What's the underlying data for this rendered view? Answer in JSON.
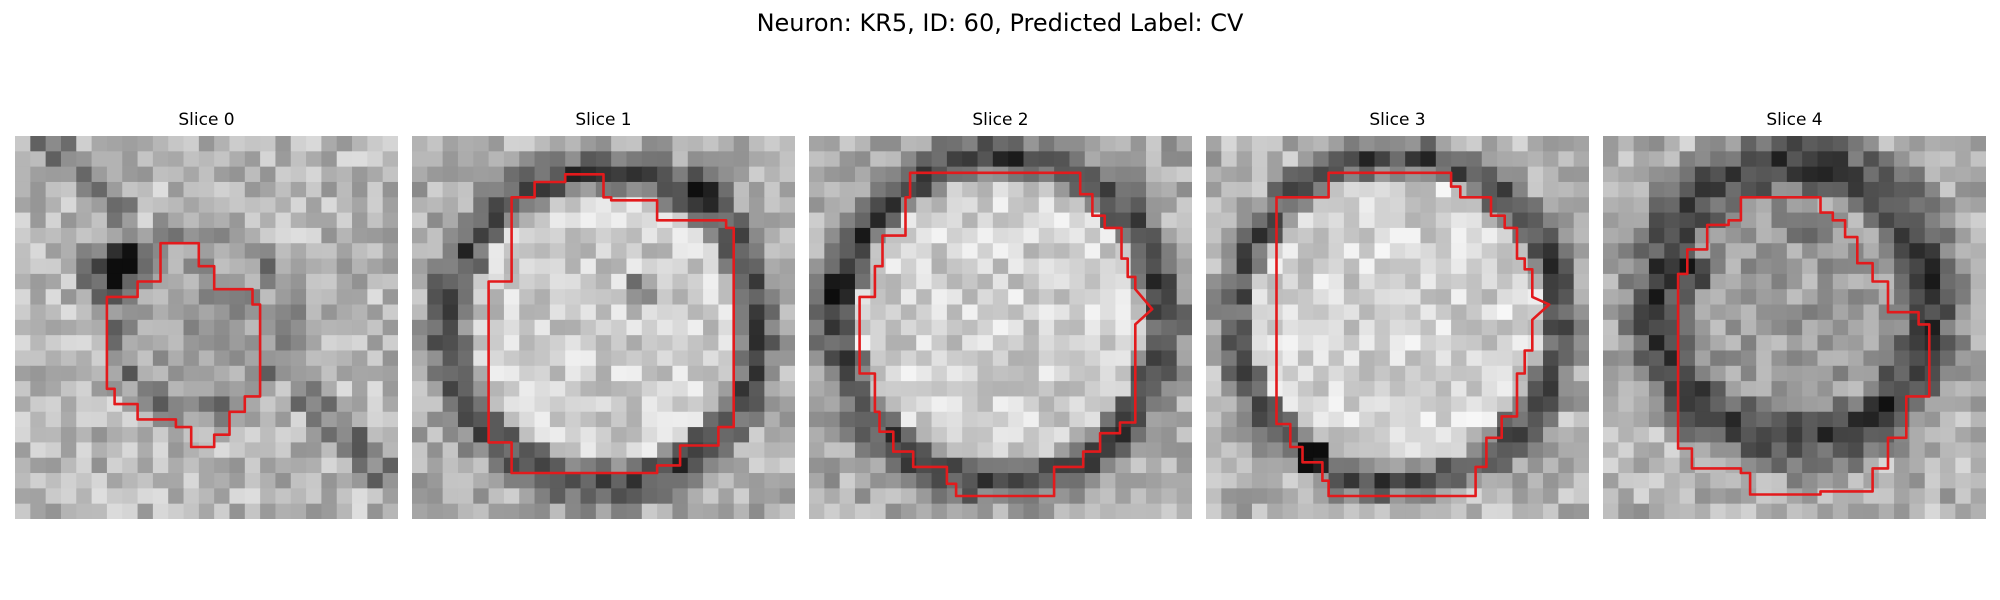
{
  "figure": {
    "title": "Neuron: KR5, ID: 60, Predicted Label: CV"
  },
  "panels": [
    {
      "title": "Slice 0",
      "image": "grayscale EM patch with small dark region and red contour"
    },
    {
      "title": "Slice 1",
      "image": "grayscale EM patch with large round cell and red contour"
    },
    {
      "title": "Slice 2",
      "image": "grayscale EM patch with large round cell and red contour"
    },
    {
      "title": "Slice 3",
      "image": "grayscale EM patch with large round cell and red contour"
    },
    {
      "title": "Slice 4",
      "image": "grayscale EM patch with ring-shaped cell and red contour"
    }
  ],
  "colors": {
    "contour": "#e31a1c"
  }
}
